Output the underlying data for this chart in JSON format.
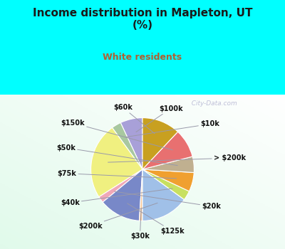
{
  "title": "Income distribution in Mapleton, UT\n(%)",
  "subtitle": "White residents",
  "title_color": "#1a1a1a",
  "subtitle_color": "#b06030",
  "bg_color": "#00ffff",
  "labels": [
    "$100k",
    "$10k",
    "> $200k",
    "$20k",
    "$125k",
    "$30k",
    "$200k",
    "$40k",
    "$75k",
    "$50k",
    "$150k",
    "$60k"
  ],
  "values": [
    7.0,
    3.0,
    24.0,
    2.0,
    13.0,
    1.0,
    15.0,
    3.0,
    6.0,
    5.0,
    9.0,
    12.0
  ],
  "colors": [
    "#a8a0d8",
    "#a8c8a0",
    "#f0f080",
    "#f0a8b8",
    "#7888c8",
    "#f8c898",
    "#a0c0e8",
    "#c8e060",
    "#f0a030",
    "#c0b090",
    "#e87070",
    "#c8a020"
  ],
  "startangle": 90,
  "watermark": "  City-Data.com"
}
